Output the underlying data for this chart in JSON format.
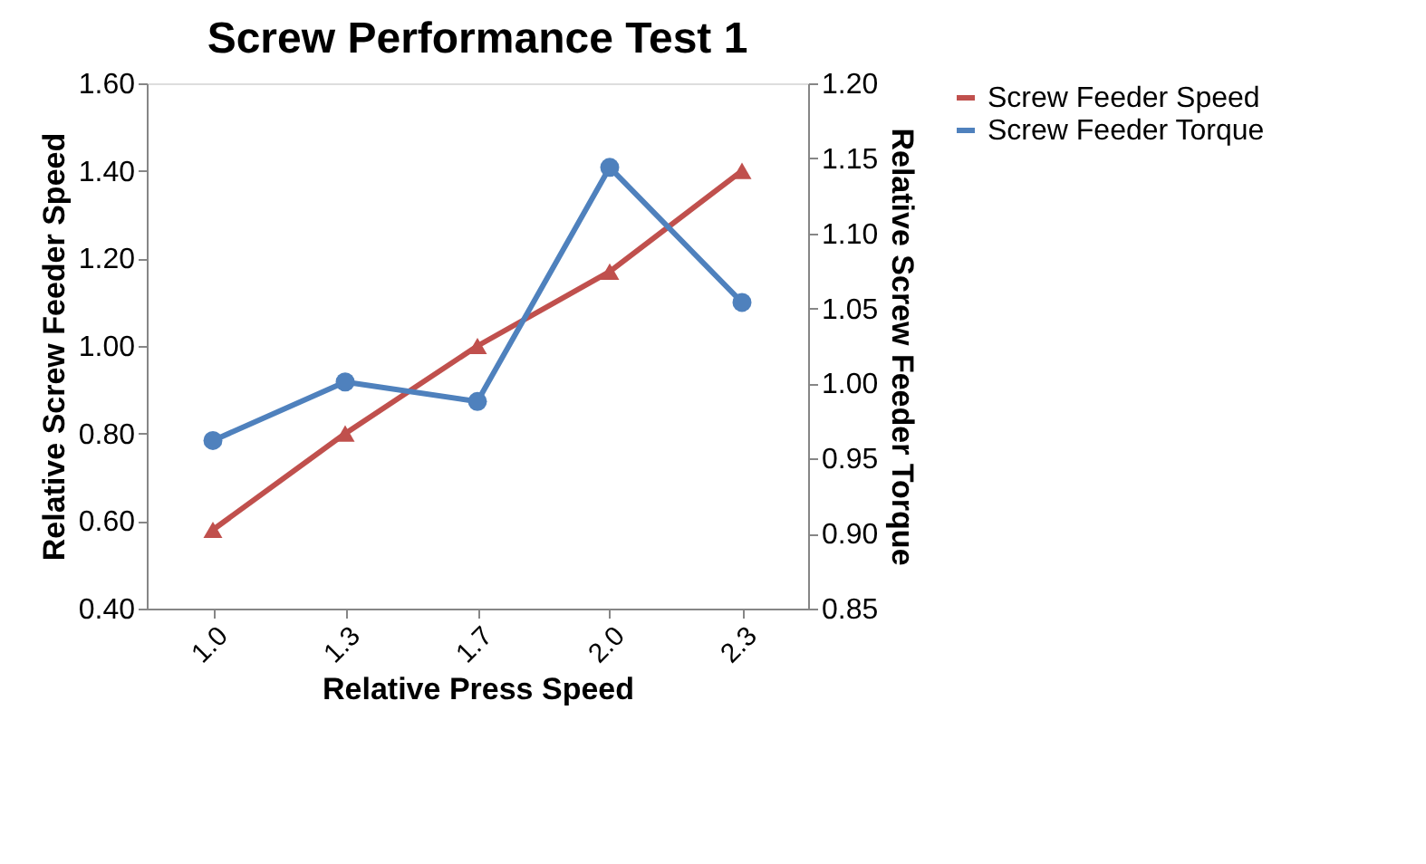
{
  "chart_data": {
    "type": "line",
    "title": "Screw Performance Test 1",
    "xlabel": "Relative Press Speed",
    "ylabel": "Relative Screw Feeder Speed",
    "y2label": "Relative Screw Feeder Torque",
    "categories": [
      "1.0",
      "1.3",
      "1.7",
      "2.0",
      "2.3"
    ],
    "series": [
      {
        "name": "Screw Feeder Speed",
        "color": "#c0504d",
        "marker": "triangle",
        "values": [
          0.58,
          0.8,
          1.0,
          1.17,
          1.4
        ]
      },
      {
        "name": "Screw Feeder Torque",
        "color": "#4f81bd",
        "marker": "circle",
        "axis": "y2",
        "values": [
          0.962,
          1.001,
          0.988,
          1.144,
          1.054
        ]
      }
    ],
    "ylim": [
      0.4,
      1.6
    ],
    "yticks": [
      {
        "value": 0.4,
        "label": "0.40"
      },
      {
        "value": 0.6,
        "label": "0.60"
      },
      {
        "value": 0.8,
        "label": "0.80"
      },
      {
        "value": 1.0,
        "label": "1.00"
      },
      {
        "value": 1.2,
        "label": "1.20"
      },
      {
        "value": 1.4,
        "label": "1.40"
      },
      {
        "value": 1.6,
        "label": "1.60"
      }
    ],
    "y2lim": [
      0.85,
      1.2
    ],
    "y2ticks": [
      {
        "value": 0.85,
        "label": "0.85"
      },
      {
        "value": 0.9,
        "label": "0.90"
      },
      {
        "value": 0.95,
        "label": "0.95"
      },
      {
        "value": 1.0,
        "label": "1.00"
      },
      {
        "value": 1.05,
        "label": "1.05"
      },
      {
        "value": 1.1,
        "label": "1.10"
      },
      {
        "value": 1.15,
        "label": "1.15"
      },
      {
        "value": 1.2,
        "label": "1.20"
      }
    ],
    "grid": false,
    "legend": "right",
    "line_style": "solid"
  }
}
